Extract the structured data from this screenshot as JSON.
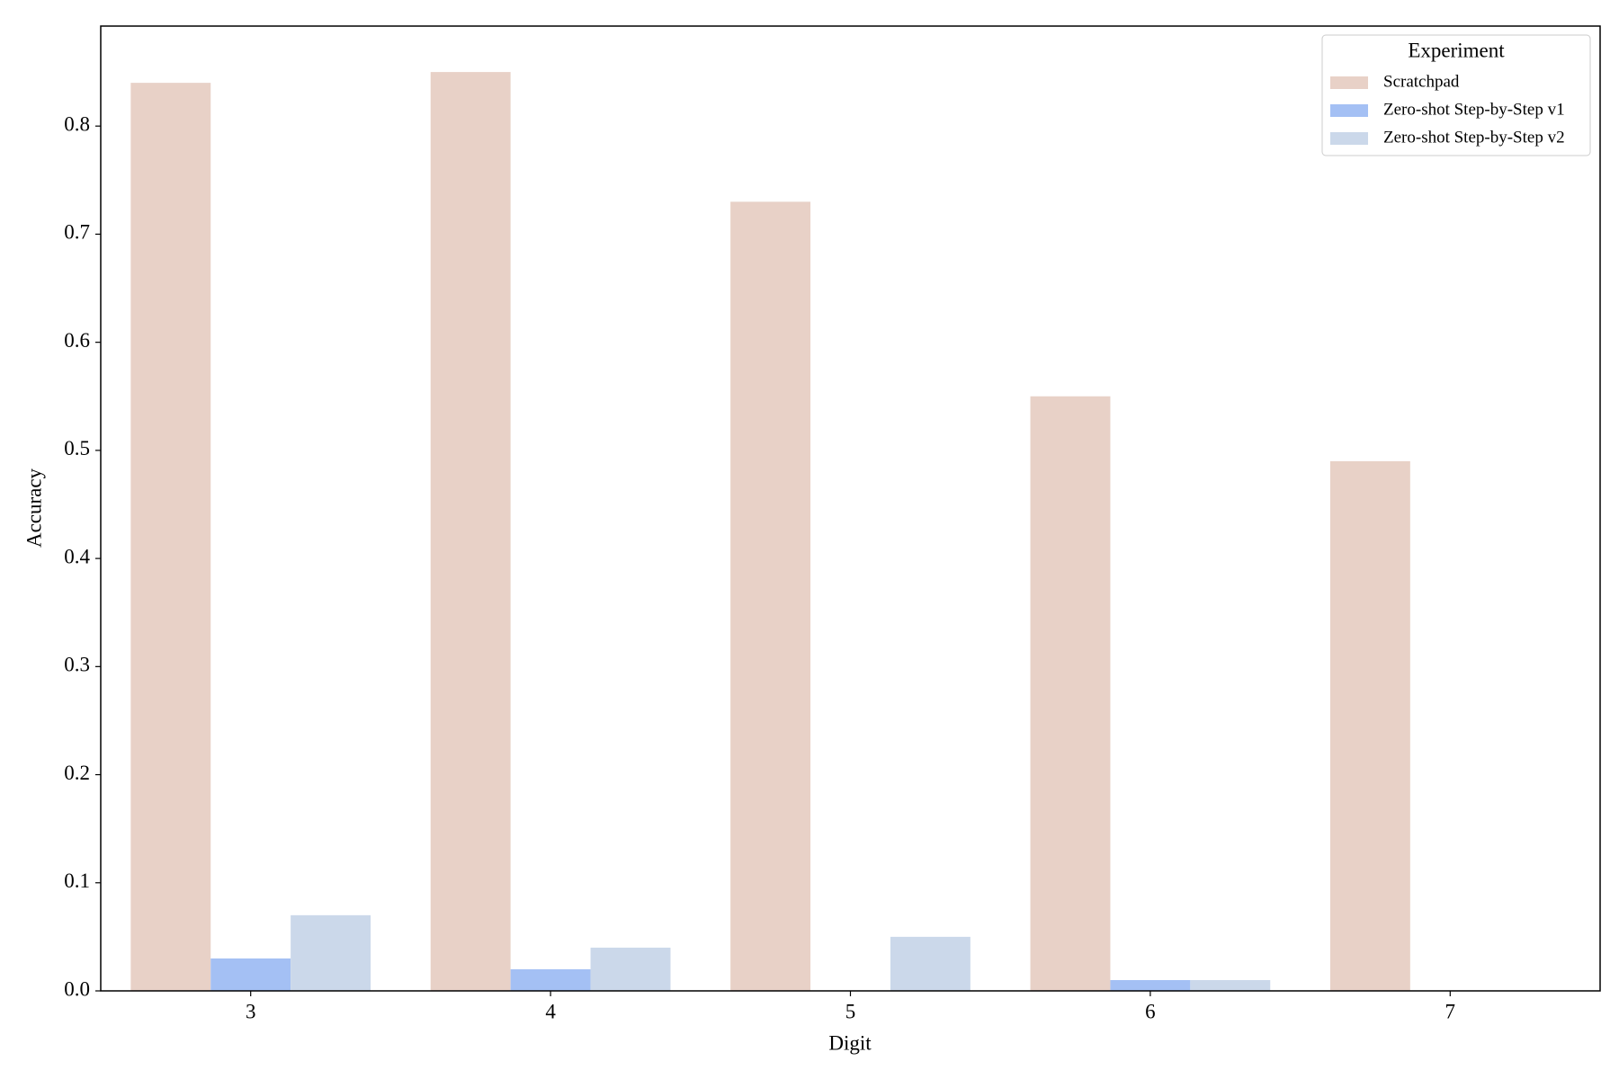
{
  "chart_data": {
    "type": "bar",
    "x_label": "Digit",
    "y_label": "Accuracy",
    "categories": [
      "3",
      "4",
      "5",
      "6",
      "7"
    ],
    "series": [
      {
        "name": "Scratchpad",
        "color": "#e8d1c7",
        "values": [
          0.84,
          0.85,
          0.73,
          0.55,
          0.49
        ]
      },
      {
        "name": "Zero-shot Step-by-Step v1",
        "color": "#a4c0f4",
        "values": [
          0.03,
          0.02,
          0,
          0.01,
          0
        ]
      },
      {
        "name": "Zero-shot Step-by-Step v2",
        "color": "#cbd8ea",
        "values": [
          0.07,
          0.04,
          0.05,
          0.01,
          0
        ]
      }
    ],
    "legend_title": "Experiment",
    "legend_position": "upper right",
    "ylim": [
      0,
      0.8925
    ],
    "yticks": [
      {
        "value": 0,
        "label": "0.0"
      },
      0.1,
      0.2,
      0.3,
      0.4,
      0.5,
      0.6,
      0.7,
      0.8
    ],
    "grid": false
  }
}
